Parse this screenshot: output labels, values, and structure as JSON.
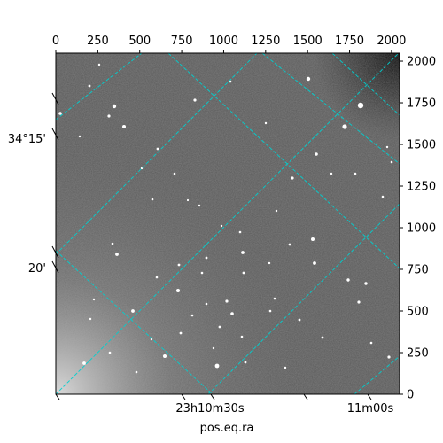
{
  "chart_data": {
    "type": "heatmap",
    "title": "",
    "xlabel": "pos.eq.ra",
    "ylabel": "",
    "pixel_x_ticks": [
      "0",
      "250",
      "500",
      "750",
      "1000",
      "1250",
      "1500",
      "1750",
      "2000"
    ],
    "pixel_y_ticks": [
      "0",
      "250",
      "500",
      "750",
      "1000",
      "1250",
      "1500",
      "1750",
      "2000"
    ],
    "pixel_range": {
      "x": [
        0,
        2048
      ],
      "y": [
        0,
        2048
      ]
    },
    "dec_tick_labels": [
      "34°15'",
      "20'"
    ],
    "ra_tick_labels": [
      "23h10m30s",
      "11m00s"
    ],
    "grid": true,
    "grid_color": "#00d0d0",
    "colormap": "gray"
  }
}
